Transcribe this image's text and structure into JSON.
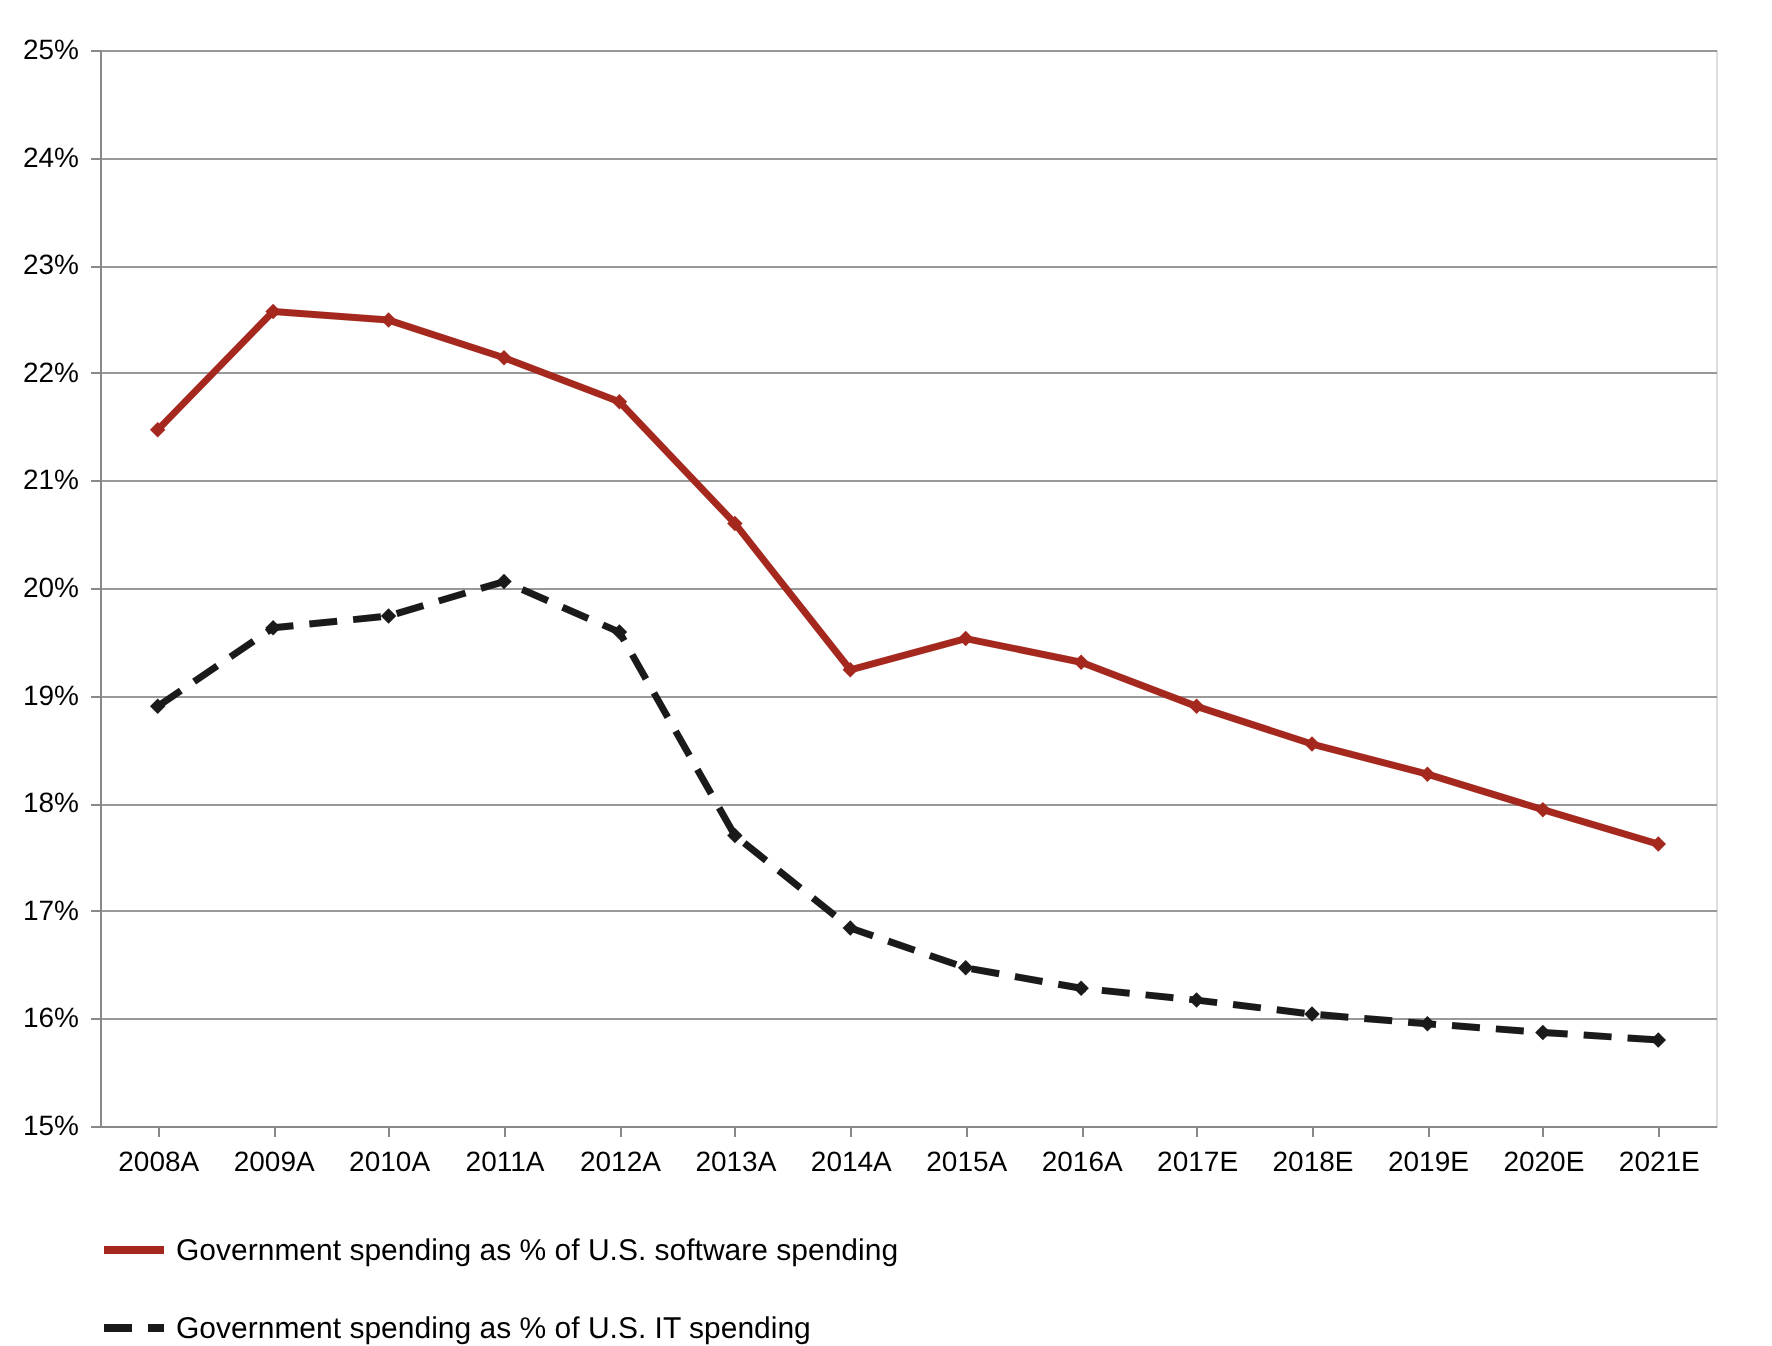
{
  "chart_data": {
    "type": "line",
    "categories": [
      "2008A",
      "2009A",
      "2010A",
      "2011A",
      "2012A",
      "2013A",
      "2014A",
      "2015A",
      "2016A",
      "2017E",
      "2018E",
      "2019E",
      "2020E",
      "2021E"
    ],
    "series": [
      {
        "name": "Government spending as % of U.S. software spending",
        "color": "#a5281f",
        "line_style": "solid",
        "values": [
          21.47,
          22.57,
          22.49,
          22.14,
          21.73,
          20.6,
          19.24,
          19.53,
          19.31,
          18.9,
          18.55,
          18.27,
          17.94,
          17.62
        ]
      },
      {
        "name": "Government spending as % of U.S. IT spending",
        "color": "#1a1a1a",
        "line_style": "dashed",
        "values": [
          18.9,
          19.63,
          19.74,
          20.06,
          19.59,
          17.7,
          16.84,
          16.47,
          16.28,
          16.17,
          16.04,
          15.95,
          15.87,
          15.8
        ]
      }
    ],
    "ylim": [
      15,
      25
    ],
    "yticks": [
      {
        "value": 15,
        "label": "15%"
      },
      {
        "value": 16,
        "label": "16%"
      },
      {
        "value": 17,
        "label": "17%"
      },
      {
        "value": 18,
        "label": "18%"
      },
      {
        "value": 19,
        "label": "19%"
      },
      {
        "value": 20,
        "label": "20%"
      },
      {
        "value": 21,
        "label": "21%"
      },
      {
        "value": 22,
        "label": "22%"
      },
      {
        "value": 23,
        "label": "23%"
      },
      {
        "value": 24,
        "label": "24%"
      },
      {
        "value": 25,
        "label": "25%"
      }
    ],
    "grid": "y",
    "legend": "bottom",
    "marker": "diamond"
  }
}
